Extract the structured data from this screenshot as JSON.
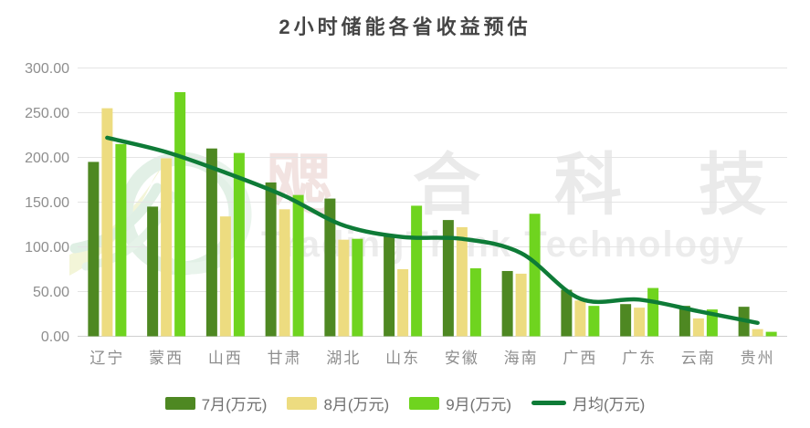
{
  "title": "2小时储能各省收益预估",
  "watermark": {
    "chars": [
      "飔",
      "合",
      "科",
      "技"
    ],
    "latin_text": "TradingThink Technology"
  },
  "chart_data": {
    "type": "bar",
    "subtype": "grouped-bars-with-average-line-overlay",
    "title": "2小时储能各省收益预估",
    "categories": [
      "辽宁",
      "蒙西",
      "山西",
      "甘肃",
      "湖北",
      "山东",
      "安徽",
      "海南",
      "广西",
      "广东",
      "云南",
      "贵州"
    ],
    "series": [
      {
        "name": "7月(万元)",
        "type": "bar",
        "color": "#4E8822",
        "values": [
          195,
          145,
          210,
          172,
          154,
          113,
          130,
          73,
          52,
          36,
          34,
          33
        ]
      },
      {
        "name": "8月(万元)",
        "type": "bar",
        "color": "#EDDC80",
        "values": [
          255,
          199,
          134,
          142,
          108,
          75,
          122,
          70,
          40,
          32,
          20,
          8
        ]
      },
      {
        "name": "9月(万元)",
        "type": "bar",
        "color": "#6FD41F",
        "values": [
          215,
          273,
          205,
          158,
          109,
          146,
          76,
          137,
          34,
          54,
          30,
          5
        ]
      },
      {
        "name": "月均(万元)",
        "type": "line",
        "color": "#0E7B37",
        "values": [
          222,
          206,
          183,
          157,
          124,
          111,
          109,
          93,
          42,
          41,
          28,
          15
        ]
      }
    ],
    "xlabel": "",
    "ylabel": "",
    "ylim": [
      0,
      300
    ],
    "ytick_interval": 50,
    "ytick_labels": [
      "300.00",
      "250.00",
      "200.00",
      "150.00",
      "100.00",
      "50.00",
      "0.00"
    ],
    "grid": "horizontal",
    "legend_position": "bottom"
  },
  "colors": {
    "axis_text": "#8E8E8E",
    "grid_line": "#E4E4E4",
    "axis_line": "#CFCFCF",
    "title_text": "#454545",
    "legend_text": "#707070",
    "watermark_gray": "#EAEAEA",
    "watermark_pink": "#F2E3E1",
    "watermark_green": "#E2F0E6"
  }
}
